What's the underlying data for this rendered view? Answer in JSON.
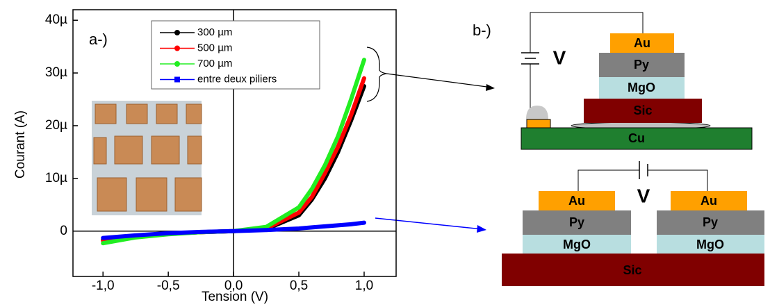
{
  "chart_data": {
    "type": "line",
    "annotation": "a-)",
    "x_label": "Tension (V)",
    "y_label": "Courant (A)",
    "x": [
      -1,
      -0.75,
      -0.5,
      -0.25,
      0,
      0.25,
      0.5,
      0.6,
      0.7,
      0.8,
      0.9,
      1
    ],
    "series": [
      {
        "name": "300 µm",
        "color": "#000000",
        "values": [
          -1.6,
          -0.9,
          -0.5,
          -0.2,
          0,
          0.4,
          3,
          6,
          10,
          15,
          21,
          27.5
        ]
      },
      {
        "name": "500 µm",
        "color": "#ff0000",
        "values": [
          -1.8,
          -1.0,
          -0.5,
          -0.2,
          0,
          0.5,
          3.5,
          6.5,
          11,
          16,
          22,
          29
        ]
      },
      {
        "name": "700 µm",
        "color": "#22ee22",
        "values": [
          -2.3,
          -1.2,
          -0.6,
          -0.2,
          0,
          0.8,
          4.5,
          8,
          12.5,
          18,
          25,
          32.5
        ]
      },
      {
        "name": "entre deux piliers",
        "color": "#0000ff",
        "values": [
          -1.3,
          -0.8,
          -0.4,
          -0.15,
          0,
          0.2,
          0.5,
          0.7,
          0.9,
          1.1,
          1.3,
          1.6
        ]
      }
    ],
    "xlim": [
      -1.23,
      1.245
    ],
    "ylim": [
      -8.6,
      42
    ],
    "xticks": [
      {
        "value": -1,
        "label": "-1,0"
      },
      {
        "value": -0.5,
        "label": "-0,5"
      },
      {
        "value": 0,
        "label": "0,0"
      },
      {
        "value": 0.5,
        "label": "0,5"
      },
      {
        "value": 1,
        "label": "1,0"
      }
    ],
    "yticks": [
      0,
      {
        "value": 10,
        "label": "10µ"
      },
      {
        "value": 20,
        "label": "20µ"
      },
      {
        "value": 30,
        "label": "30µ"
      },
      {
        "value": 40,
        "label": "40µ"
      }
    ],
    "legend": "top-center"
  },
  "diagram": {
    "label": "b-)",
    "top": {
      "au": "Au",
      "py": "Py",
      "mgo": "MgO",
      "sic": "Sic",
      "cu": "Cu",
      "source": "V"
    },
    "bottom": {
      "left_au": "Au",
      "left_py": "Py",
      "left_mgo": "MgO",
      "right_au": "Au",
      "right_py": "Py",
      "right_mgo": "MgO",
      "sic": "Sic",
      "source": "V"
    }
  }
}
